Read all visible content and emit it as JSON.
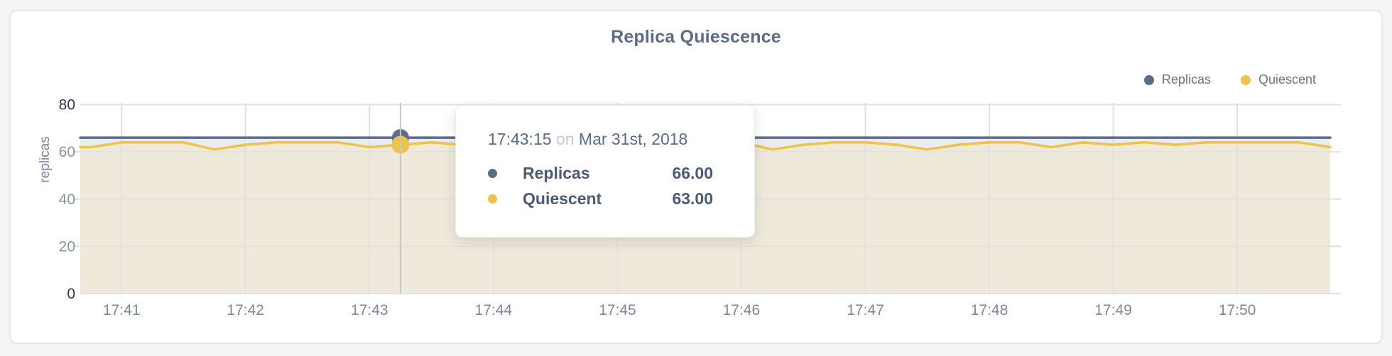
{
  "window": {
    "background": "#f4f5f5"
  },
  "card": {
    "background": "#ffffff",
    "border_color": "#e7e7e7"
  },
  "header": {
    "title": "Replica Quiescence",
    "title_color": "#5b6c87"
  },
  "legend": {
    "position": "top-right",
    "items": [
      {
        "label": "Replicas",
        "color": "#5d6c88"
      },
      {
        "label": "Quiescent",
        "color": "#eec34b"
      }
    ]
  },
  "axes": {
    "y_label": "replicas"
  },
  "tooltip": {
    "time": "17:43:15",
    "connector": "on",
    "date": "Mar 31st, 2018",
    "rows": [
      {
        "label": "Replicas",
        "value": "66.00",
        "color": "#5d6c88"
      },
      {
        "label": "Quiescent",
        "value": "63.00",
        "color": "#eec34b"
      }
    ]
  },
  "chart_data": {
    "type": "line",
    "title": "Replica Quiescence",
    "xlabel": "",
    "ylabel": "replicas",
    "ylim": [
      0,
      80
    ],
    "y_ticks": [
      0,
      20,
      40,
      60,
      80
    ],
    "x_ticks": [
      "17:41",
      "17:42",
      "17:43",
      "17:44",
      "17:45",
      "17:46",
      "17:47",
      "17:48",
      "17:49",
      "17:50"
    ],
    "x_range": [
      "17:40:40",
      "17:50:45"
    ],
    "grid": true,
    "legend_position": "top-right",
    "gridline_color": "#e3e1dd",
    "crosshair_color": "#c6c6c6",
    "x": [
      "17:40:45",
      "17:41:00",
      "17:41:15",
      "17:41:30",
      "17:41:45",
      "17:42:00",
      "17:42:15",
      "17:42:30",
      "17:42:45",
      "17:43:00",
      "17:43:15",
      "17:43:30",
      "17:43:45",
      "17:44:00",
      "17:44:15",
      "17:44:30",
      "17:44:45",
      "17:45:00",
      "17:45:15",
      "17:45:30",
      "17:45:45",
      "17:46:00",
      "17:46:15",
      "17:46:30",
      "17:46:45",
      "17:47:00",
      "17:47:15",
      "17:47:30",
      "17:47:45",
      "17:48:00",
      "17:48:15",
      "17:48:30",
      "17:48:45",
      "17:49:00",
      "17:49:15",
      "17:49:30",
      "17:49:45",
      "17:50:00",
      "17:50:15",
      "17:50:30",
      "17:50:45"
    ],
    "series": [
      {
        "name": "Replicas",
        "color": "#5d6c88",
        "fill": "rgba(93,108,136,0.13)",
        "values": [
          66,
          66,
          66,
          66,
          66,
          66,
          66,
          66,
          66,
          66,
          66,
          66,
          66,
          66,
          66,
          66,
          66,
          66,
          66,
          66,
          66,
          66,
          66,
          66,
          66,
          66,
          66,
          66,
          66,
          66,
          66,
          66,
          66,
          66,
          66,
          66,
          66,
          66,
          66,
          66,
          66
        ]
      },
      {
        "name": "Quiescent",
        "color": "#eec34b",
        "fill": "rgba(222,211,181,0.5)",
        "values": [
          62,
          64,
          64,
          64,
          61,
          63,
          64,
          64,
          64,
          62,
          63,
          64,
          63,
          64,
          63,
          64,
          64,
          63,
          64,
          63,
          64,
          64,
          61,
          63,
          64,
          64,
          63,
          61,
          63,
          64,
          64,
          62,
          64,
          63,
          64,
          63,
          64,
          64,
          64,
          64,
          62
        ]
      }
    ],
    "hover_point": {
      "time": "17:43:15",
      "date": "Mar 31st, 2018",
      "values": {
        "Replicas": 66,
        "Quiescent": 63
      }
    }
  }
}
